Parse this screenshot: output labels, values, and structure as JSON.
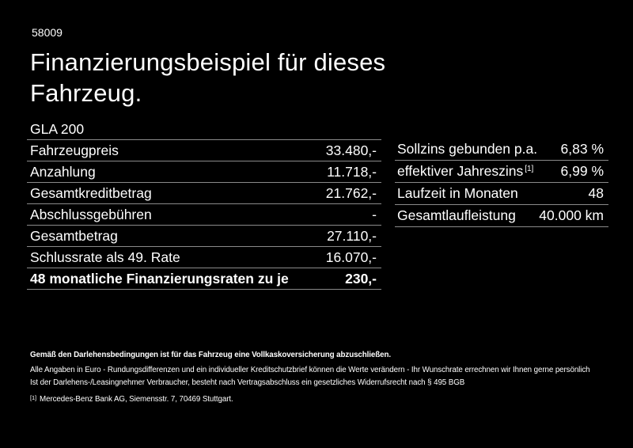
{
  "page": {
    "code": "58009",
    "title": "Finanzierungsbeispiel für dieses Fahrzeug.",
    "model": "GLA 200"
  },
  "finance_table": {
    "rows": [
      {
        "label": "Fahrzeugpreis",
        "value": "33.480,-"
      },
      {
        "label": "Anzahlung",
        "value": "11.718,-"
      },
      {
        "label": "Gesamtkreditbetrag",
        "value": "21.762,-"
      },
      {
        "label": "Abschlussgebühren",
        "value": "-"
      },
      {
        "label": "Gesamtbetrag",
        "value": "27.110,-"
      },
      {
        "label": "Schlussrate als 49. Rate",
        "value": "16.070,-"
      },
      {
        "label": "48 monatliche Finanzierungsraten zu je",
        "value": "230,-"
      }
    ]
  },
  "conditions_table": {
    "rows": [
      {
        "label": "Sollzins gebunden p.a.",
        "value": "6,83 %"
      },
      {
        "label": "effektiver Jahreszins",
        "sup": "[1]",
        "value": "6,99 %"
      },
      {
        "label": "Laufzeit in Monaten",
        "value": "48"
      },
      {
        "label": "Gesamtlaufleistung",
        "value": "40.000 km"
      }
    ]
  },
  "footer": {
    "insurance_note": "Gemäß den Darlehensbedingungen ist für das Fahrzeug eine Vollkaskoversicherung abzuschließen.",
    "values_note": "Alle Angaben in Euro - Rundungsdifferenzen und ein individueller Kreditschutzbrief können die Werte verändern - Ihr Wunschrate errechnen wir Ihnen gerne persönlich",
    "withdrawal_note": "Ist der Darlehens-/Leasingnehmer Verbraucher, besteht nach Vertragsabschluss ein gesetzliches Widerrufsrecht nach § 495 BGB",
    "footnote_marker": "[1]",
    "footnote_text": "Mercedes-Benz Bank AG, Siemensstr. 7, 70469 Stuttgart."
  },
  "colors": {
    "background": "#000000",
    "text": "#ffffff",
    "divider": "#8a8a8a"
  }
}
